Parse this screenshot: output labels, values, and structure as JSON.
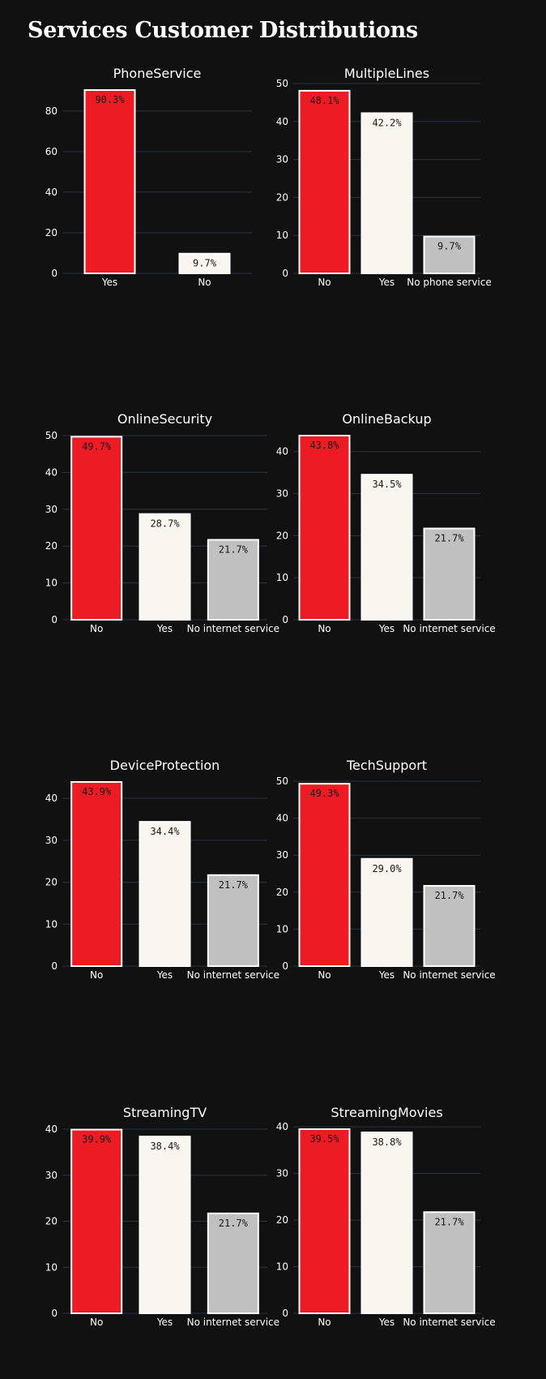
{
  "title": "Services Customer Distributions",
  "colors": {
    "background": "#111111",
    "grid": "#283442",
    "text": "#ffffff",
    "label": "#1a1a1a",
    "bar_outline": "#ffffff"
  },
  "bar_colors": [
    "#ed1c24",
    "#f9f6f0",
    "#c0c0c0"
  ],
  "chart_data": [
    {
      "type": "bar",
      "title": "PhoneService",
      "categories": [
        "Yes",
        "No"
      ],
      "values": [
        90.3,
        9.7
      ],
      "labels": [
        "90.3%",
        "9.7%"
      ],
      "ylim": [
        0,
        90.3
      ],
      "yticks": [
        0,
        20,
        40,
        60,
        80
      ],
      "grid": true
    },
    {
      "type": "bar",
      "title": "MultipleLines",
      "categories": [
        "No",
        "Yes",
        "No phone service"
      ],
      "values": [
        48.1,
        42.2,
        9.7
      ],
      "labels": [
        "48.1%",
        "42.2%",
        "9.7%"
      ],
      "ylim": [
        0,
        50
      ],
      "yticks": [
        0,
        10,
        20,
        30,
        40,
        50
      ],
      "grid": true
    },
    {
      "type": "bar",
      "title": "OnlineSecurity",
      "categories": [
        "No",
        "Yes",
        "No internet service"
      ],
      "values": [
        49.7,
        28.7,
        21.7
      ],
      "labels": [
        "49.7%",
        "28.7%",
        "21.7%"
      ],
      "ylim": [
        0,
        50
      ],
      "yticks": [
        0,
        10,
        20,
        30,
        40,
        50
      ],
      "grid": true
    },
    {
      "type": "bar",
      "title": "OnlineBackup",
      "categories": [
        "No",
        "Yes",
        "No internet service"
      ],
      "values": [
        43.8,
        34.5,
        21.7
      ],
      "labels": [
        "43.8%",
        "34.5%",
        "21.7%"
      ],
      "ylim": [
        0,
        43.8
      ],
      "yticks": [
        0,
        10,
        20,
        30,
        40
      ],
      "grid": true
    },
    {
      "type": "bar",
      "title": "DeviceProtection",
      "categories": [
        "No",
        "Yes",
        "No internet service"
      ],
      "values": [
        43.9,
        34.4,
        21.7
      ],
      "labels": [
        "43.9%",
        "34.4%",
        "21.7%"
      ],
      "ylim": [
        0,
        43.9
      ],
      "yticks": [
        0,
        10,
        20,
        30,
        40
      ],
      "grid": true
    },
    {
      "type": "bar",
      "title": "TechSupport",
      "categories": [
        "No",
        "Yes",
        "No internet service"
      ],
      "values": [
        49.3,
        29.0,
        21.7
      ],
      "labels": [
        "49.3%",
        "29.0%",
        "21.7%"
      ],
      "ylim": [
        0,
        50
      ],
      "yticks": [
        0,
        10,
        20,
        30,
        40,
        50
      ],
      "grid": true
    },
    {
      "type": "bar",
      "title": "StreamingTV",
      "categories": [
        "No",
        "Yes",
        "No internet service"
      ],
      "values": [
        39.9,
        38.4,
        21.7
      ],
      "labels": [
        "39.9%",
        "38.4%",
        "21.7%"
      ],
      "ylim": [
        0,
        40
      ],
      "yticks": [
        0,
        10,
        20,
        30,
        40
      ],
      "grid": true
    },
    {
      "type": "bar",
      "title": "StreamingMovies",
      "categories": [
        "No",
        "Yes",
        "No internet service"
      ],
      "values": [
        39.5,
        38.8,
        21.7
      ],
      "labels": [
        "39.5%",
        "38.8%",
        "21.7%"
      ],
      "ylim": [
        0,
        39.5
      ],
      "yticks": [
        0,
        10,
        20,
        30,
        40
      ],
      "grid": true
    }
  ]
}
